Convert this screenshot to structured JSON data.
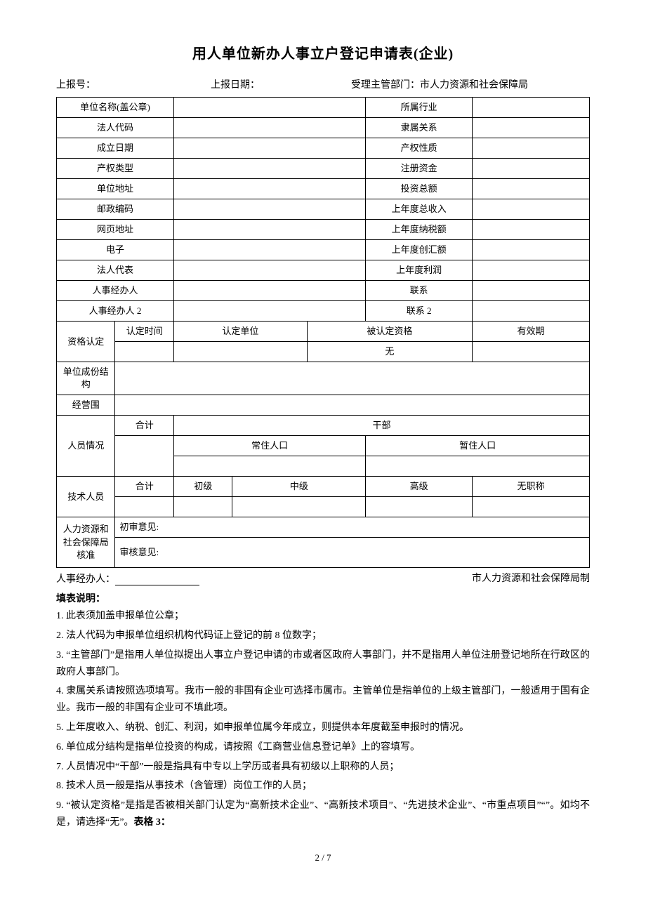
{
  "title": "用人单位新办人事立户登记申请表(企业)",
  "header": {
    "report_no_label": "上报号：",
    "report_date_label": "上报日期：",
    "dept_label": "受理主管部门：市人力资源和社会保障局"
  },
  "rows_pair": [
    [
      "单位名称(盖公章)",
      "所属行业"
    ],
    [
      "法人代码",
      "隶属关系"
    ],
    [
      "成立日期",
      "产权性质"
    ],
    [
      "产权类型",
      "注册资金"
    ],
    [
      "单位地址",
      "投资总额"
    ],
    [
      "邮政编码",
      "上年度总收入"
    ],
    [
      "网页地址",
      "上年度纳税额"
    ],
    [
      "电子",
      "上年度创汇额"
    ],
    [
      "法人代表",
      "上年度利润"
    ],
    [
      "人事经办人",
      "联系"
    ],
    [
      "人事经办人 2",
      "联系 2"
    ]
  ],
  "qual": {
    "row_label": "资格认定",
    "cols": [
      "认定时间",
      "认定单位",
      "被认定资格",
      "有效期"
    ],
    "none": "无"
  },
  "unit_struct": "单位成份结构",
  "scope": "经营围",
  "personnel": {
    "label": "人员情况",
    "total": "合计",
    "cadre": "干部",
    "resident": "常住人口",
    "temp": "暂住人口"
  },
  "tech": {
    "label": "技术人员",
    "total": "合计",
    "junior": "初级",
    "mid": "中级",
    "senior": "高级",
    "none": "无职称"
  },
  "approval": {
    "label": "人力资源和社会保障局核准",
    "first": "初审意见:",
    "review": "审核意见:"
  },
  "footer": {
    "left": "人事经办人：",
    "right": "市人力资源和社会保障局制"
  },
  "notes_title": "填表说明：",
  "notes": [
    "1. 此表须加盖申报单位公章；",
    "2. 法人代码为申报单位组织机构代码证上登记的前 8 位数字；",
    "3. “主管部门”是指用人单位拟提出人事立户登记申请的市或者区政府人事部门，并不是指用人单位注册登记地所在行政区的政府人事部门。",
    "4. 隶属关系请按照选项填写。我市一般的非国有企业可选择市属市。主管单位是指单位的上级主管部门，一般适用于国有企业。我市一般的非国有企业可不填此项。",
    "5. 上年度收入、纳税、创汇、利润，如申报单位属今年成立，则提供本年度截至申报时的情况。",
    "6. 单位成分结构是指单位投资的构成，请按照《工商营业信息登记单》上的容填写。",
    "7. 人员情况中“干部”一般是指具有中专以上学历或者具有初级以上职称的人员；",
    "8. 技术人员一般是指从事技术（含管理）岗位工作的人员；",
    "9. “被认定资格”是指是否被相关部门认定为“高新技术企业”、“高新技术项目”、“先进技术企业”、“市重点项目”“”。如均不是，请选择“无”。"
  ],
  "table3": "表格 3：",
  "page_num": "2 / 7"
}
